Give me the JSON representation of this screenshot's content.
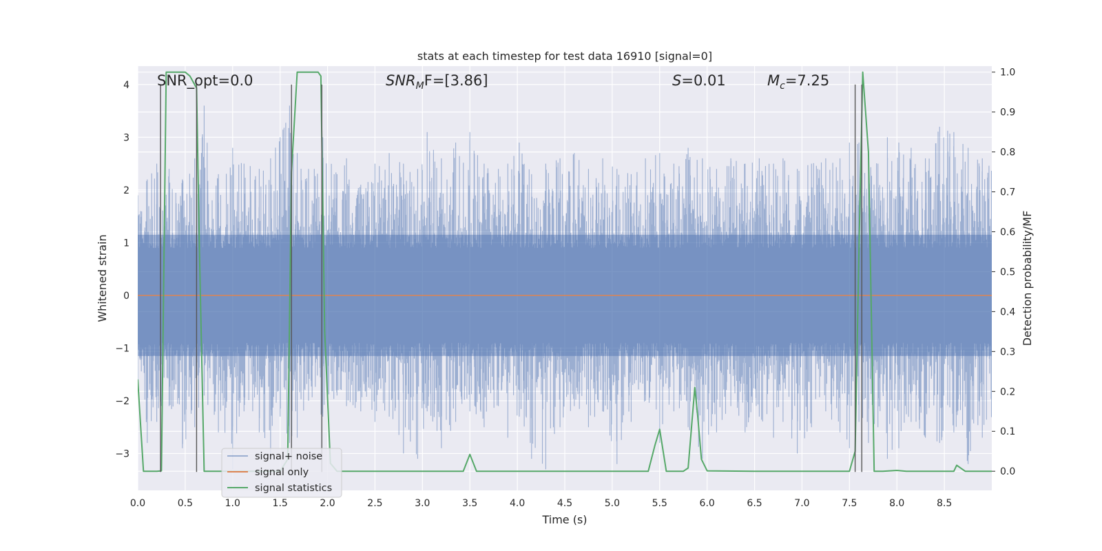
{
  "chart_data": {
    "type": "line",
    "title": "stats at each timestep for test data 16910 [signal=0]",
    "xlabel": "Time (s)",
    "ylabel_left": "Whitened strain",
    "ylabel_right": "Detection probability/MF",
    "xlim": [
      0,
      9
    ],
    "ylim_left": [
      -3.7,
      4.35
    ],
    "ylim_right": [
      -0.048,
      1.015
    ],
    "x_ticks": [
      "0.0",
      "0.5",
      "1.0",
      "1.5",
      "2.0",
      "2.5",
      "3.0",
      "3.5",
      "4.0",
      "4.5",
      "5.0",
      "5.5",
      "6.0",
      "6.5",
      "7.0",
      "7.5",
      "8.0",
      "8.5"
    ],
    "y_ticks_left": [
      "−3",
      "−2",
      "−1",
      "0",
      "1",
      "2",
      "3",
      "4"
    ],
    "y_ticks_right": [
      "0.0",
      "0.1",
      "0.2",
      "0.3",
      "0.4",
      "0.5",
      "0.6",
      "0.7",
      "0.8",
      "0.9",
      "1.0"
    ],
    "grid": true,
    "legend_position": "lower-left",
    "annotations": {
      "snr_opt": "SNR_opt=0.0",
      "snr_mf_main": "SNR",
      "snr_mf_sub": "M",
      "snr_mf_tail": "F=[3.86]",
      "s_main": "S",
      "s_tail": "=0.01",
      "mc_main": "M",
      "mc_sub": "c",
      "mc_tail": "=7.25"
    },
    "series": [
      {
        "name": "signal+ noise",
        "color": "#4c72b0",
        "axis": "left",
        "description_values": "noise band roughly ±1.2 with spikes up to ~4 and down to ~-3.3",
        "band": [
          -1.15,
          1.15
        ],
        "peak_samples": [
          [
            0.0,
            1.9,
            -1.6
          ],
          [
            0.1,
            2.2,
            -2.8
          ],
          [
            0.2,
            2.5,
            -2.4
          ],
          [
            0.33,
            2.4,
            -2.1
          ],
          [
            0.47,
            2.2,
            -2.9
          ],
          [
            0.6,
            2.6,
            -2.5
          ],
          [
            0.7,
            3.6,
            -1.9
          ],
          [
            0.85,
            2.3,
            -2.6
          ],
          [
            1.0,
            2.8,
            -3.3
          ],
          [
            1.12,
            2.5,
            -2.2
          ],
          [
            1.28,
            2.4,
            -2.6
          ],
          [
            1.4,
            2.6,
            -3.0
          ],
          [
            1.5,
            3.0,
            -2.3
          ],
          [
            1.6,
            3.6,
            -2.8
          ],
          [
            1.68,
            2.7,
            -2.7
          ],
          [
            1.8,
            2.4,
            -2.0
          ],
          [
            1.95,
            3.0,
            -2.3
          ],
          [
            2.1,
            2.3,
            -1.9
          ],
          [
            2.2,
            2.6,
            -2.1
          ],
          [
            2.35,
            2.1,
            -2.2
          ],
          [
            2.5,
            2.5,
            -2.4
          ],
          [
            2.65,
            2.7,
            -2.3
          ],
          [
            2.8,
            2.5,
            -3.0
          ],
          [
            2.95,
            2.4,
            -3.1
          ],
          [
            3.05,
            3.1,
            -2.2
          ],
          [
            3.2,
            2.6,
            -2.9
          ],
          [
            3.35,
            2.9,
            -2.4
          ],
          [
            3.5,
            3.1,
            -2.2
          ],
          [
            3.65,
            2.5,
            -2.5
          ],
          [
            3.8,
            2.4,
            -2.1
          ],
          [
            3.9,
            2.5,
            -2.7
          ],
          [
            4.02,
            2.9,
            -2.3
          ],
          [
            4.15,
            2.3,
            -3.1
          ],
          [
            4.3,
            2.5,
            -3.3
          ],
          [
            4.45,
            2.6,
            -2.5
          ],
          [
            4.6,
            2.7,
            -2.1
          ],
          [
            4.75,
            2.4,
            -2.5
          ],
          [
            4.9,
            2.6,
            -2.2
          ],
          [
            5.05,
            2.4,
            -3.2
          ],
          [
            5.2,
            2.3,
            -2.4
          ],
          [
            5.35,
            2.6,
            -2.0
          ],
          [
            5.5,
            2.7,
            -2.8
          ],
          [
            5.65,
            2.5,
            -2.2
          ],
          [
            5.8,
            2.8,
            -2.5
          ],
          [
            5.95,
            2.6,
            -3.1
          ],
          [
            6.1,
            2.4,
            -2.6
          ],
          [
            6.25,
            2.6,
            -2.1
          ],
          [
            6.4,
            2.5,
            -2.6
          ],
          [
            6.55,
            2.6,
            -2.3
          ],
          [
            6.7,
            2.5,
            -2.7
          ],
          [
            6.8,
            2.6,
            -2.4
          ],
          [
            6.95,
            2.4,
            -3.0
          ],
          [
            7.1,
            2.5,
            -2.5
          ],
          [
            7.25,
            2.6,
            -2.2
          ],
          [
            7.4,
            2.6,
            -2.6
          ],
          [
            7.5,
            2.9,
            -2.9
          ],
          [
            7.6,
            2.9,
            -2.4
          ],
          [
            7.7,
            2.7,
            -2.8
          ],
          [
            7.8,
            2.5,
            -2.5
          ],
          [
            7.9,
            3.0,
            -3.1
          ],
          [
            8.02,
            2.9,
            -2.9
          ],
          [
            8.15,
            2.8,
            -2.4
          ],
          [
            8.3,
            2.6,
            -2.7
          ],
          [
            8.45,
            3.2,
            -2.8
          ],
          [
            8.6,
            3.1,
            -2.6
          ],
          [
            8.75,
            2.8,
            -3.2
          ],
          [
            8.9,
            2.6,
            -2.7
          ]
        ]
      },
      {
        "name": "signal only",
        "color": "#dd8452",
        "axis": "left",
        "x": [
          0,
          9
        ],
        "y": [
          0,
          0
        ]
      },
      {
        "name": "signal statistics",
        "color": "#55a868",
        "axis": "right",
        "x": [
          0.0,
          0.06,
          0.2,
          0.25,
          0.3,
          0.35,
          0.5,
          0.55,
          0.62,
          0.65,
          0.7,
          1.0,
          1.5,
          1.58,
          1.62,
          1.68,
          1.8,
          1.9,
          1.93,
          1.97,
          2.03,
          2.1,
          2.5,
          3.0,
          3.43,
          3.5,
          3.57,
          3.7,
          4.0,
          4.5,
          5.0,
          5.38,
          5.45,
          5.5,
          5.57,
          5.75,
          5.8,
          5.87,
          5.9,
          5.94,
          6.0,
          6.5,
          7.0,
          7.5,
          7.56,
          7.6,
          7.64,
          7.7,
          7.76,
          7.85,
          8.0,
          8.1,
          8.5,
          8.6,
          8.63,
          8.72,
          8.8,
          9.0
        ],
        "y": [
          0.23,
          0.0,
          0.0,
          0.001,
          1.0,
          1.0,
          1.0,
          0.99,
          0.96,
          0.55,
          0.0,
          0.0,
          0.0,
          0.03,
          0.75,
          1.0,
          1.0,
          1.0,
          0.99,
          0.35,
          0.02,
          0.0,
          0.0,
          0.0,
          0.0,
          0.042,
          0.0,
          0.0,
          0.0,
          0.0,
          0.0,
          0.0,
          0.065,
          0.105,
          0.0,
          0.0,
          0.008,
          0.21,
          0.14,
          0.03,
          0.001,
          0.0,
          0.0,
          0.0,
          0.05,
          0.55,
          1.0,
          0.8,
          0.0,
          0.0,
          0.002,
          0.0,
          0.0,
          0.0,
          0.015,
          0.0,
          0.0,
          0.0
        ]
      }
    ],
    "vertical_lines": [
      0.24,
      0.62,
      1.62,
      1.94,
      7.56,
      7.63
    ]
  }
}
